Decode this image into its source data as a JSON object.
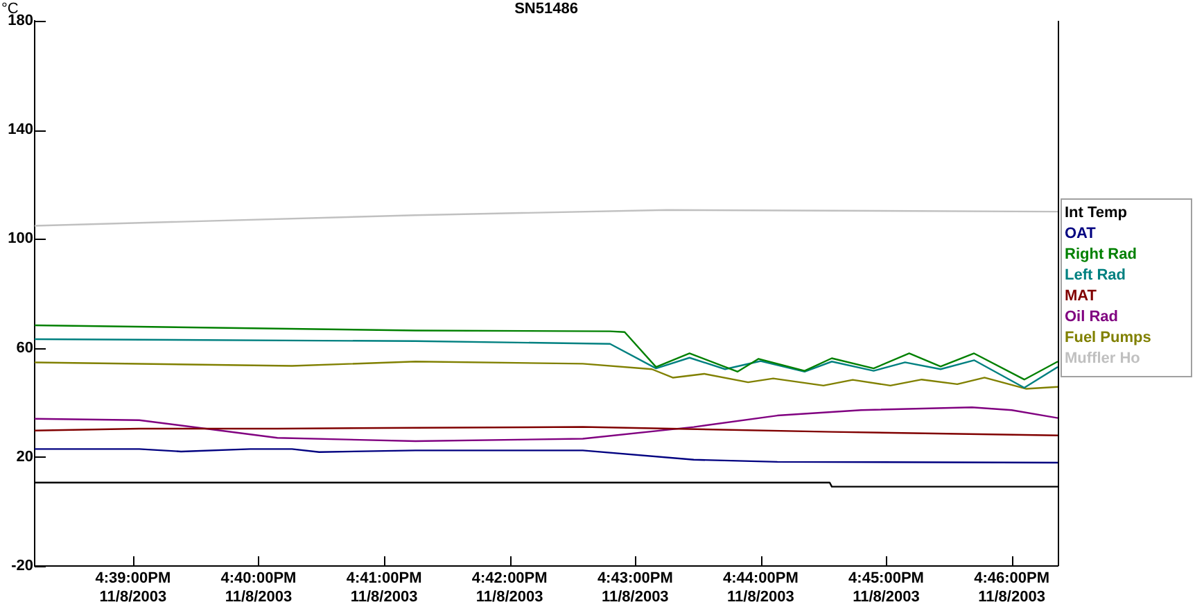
{
  "chart_data": {
    "type": "line",
    "title": "SN51486",
    "ylabel": "°C",
    "legend": "right",
    "grid": false,
    "marker": "none",
    "line_style": "solid",
    "xlim": [
      "2003-11-08T16:38:13",
      "2003-11-08T16:46:22"
    ],
    "ylim": [
      -20,
      180
    ],
    "yticks": [
      -20,
      20,
      60,
      100,
      140,
      180
    ],
    "xticks": [
      {
        "value": "2003-11-08T16:39",
        "label": "4:39:00PM\n11/8/2003"
      },
      {
        "value": "2003-11-08T16:40",
        "label": "4:40:00PM\n11/8/2003"
      },
      {
        "value": "2003-11-08T16:41",
        "label": "4:41:00PM\n11/8/2003"
      },
      {
        "value": "2003-11-08T16:42",
        "label": "4:42:00PM\n11/8/2003"
      },
      {
        "value": "2003-11-08T16:43",
        "label": "4:43:00PM\n11/8/2003"
      },
      {
        "value": "2003-11-08T16:44",
        "label": "4:44:00PM\n11/8/2003"
      },
      {
        "value": "2003-11-08T16:45",
        "label": "4:45:00PM\n11/8/2003"
      },
      {
        "value": "2003-11-08T16:46",
        "label": "4:46:00PM\n11/8/2003"
      }
    ],
    "series": [
      {
        "name": "Int Temp",
        "color": "#000000",
        "x": [
          "2003-11-08T16:38:13",
          "2003-11-08T16:44:33",
          "2003-11-08T16:44:34",
          "2003-11-08T16:46:22"
        ],
        "values": [
          10.6,
          10.6,
          9.1,
          9.1
        ]
      },
      {
        "name": "OAT",
        "color": "#000080",
        "x": [
          "2003-11-08T16:38:13",
          "2003-11-08T16:39:03",
          "2003-11-08T16:39:23",
          "2003-11-08T16:39:56",
          "2003-11-08T16:40:16",
          "2003-11-08T16:40:29",
          "2003-11-08T16:41:15",
          "2003-11-08T16:42:35",
          "2003-11-08T16:43:28",
          "2003-11-08T16:44:08",
          "2003-11-08T16:46:22"
        ],
        "values": [
          22.9,
          22.9,
          22,
          22.9,
          22.9,
          21.8,
          22.4,
          22.4,
          19,
          18.2,
          17.9
        ]
      },
      {
        "name": "Right Rad",
        "color": "#008000",
        "x": [
          "2003-11-08T16:38:13",
          "2003-11-08T16:41:15",
          "2003-11-08T16:42:48",
          "2003-11-08T16:42:55",
          "2003-11-08T16:43:10",
          "2003-11-08T16:43:26",
          "2003-11-08T16:43:49",
          "2003-11-08T16:43:59",
          "2003-11-08T16:44:21",
          "2003-11-08T16:44:34",
          "2003-11-08T16:44:54",
          "2003-11-08T16:45:11",
          "2003-11-08T16:45:26",
          "2003-11-08T16:45:42",
          "2003-11-08T16:46:06",
          "2003-11-08T16:46:22"
        ],
        "values": [
          68.3,
          66.4,
          66.1,
          65.8,
          53,
          58,
          51.3,
          56,
          51.6,
          56.2,
          52.5,
          58,
          53.2,
          58,
          48.4,
          55
        ]
      },
      {
        "name": "Left Rad",
        "color": "#008080",
        "x": [
          "2003-11-08T16:38:13",
          "2003-11-08T16:41:15",
          "2003-11-08T16:42:48",
          "2003-11-08T16:43:10",
          "2003-11-08T16:43:26",
          "2003-11-08T16:43:43",
          "2003-11-08T16:44:00",
          "2003-11-08T16:44:21",
          "2003-11-08T16:44:34",
          "2003-11-08T16:44:54",
          "2003-11-08T16:45:09",
          "2003-11-08T16:45:26",
          "2003-11-08T16:45:42",
          "2003-11-08T16:46:06",
          "2003-11-08T16:46:22"
        ],
        "values": [
          63.2,
          62.5,
          61.5,
          52.5,
          56.4,
          52.2,
          55.2,
          51.3,
          55,
          51.6,
          54.7,
          52.2,
          55.5,
          45.4,
          53
        ]
      },
      {
        "name": "MAT",
        "color": "#800000",
        "x": [
          "2003-11-08T16:38:13",
          "2003-11-08T16:39:03",
          "2003-11-08T16:40:09",
          "2003-11-08T16:41:15",
          "2003-11-08T16:42:35",
          "2003-11-08T16:44:34",
          "2003-11-08T16:46:22"
        ],
        "values": [
          29.7,
          30.4,
          30.4,
          30.7,
          31,
          29.2,
          27.9
        ]
      },
      {
        "name": "Oil Rad",
        "color": "#800080",
        "x": [
          "2003-11-08T16:38:13",
          "2003-11-08T16:39:03",
          "2003-11-08T16:40:09",
          "2003-11-08T16:41:15",
          "2003-11-08T16:42:35",
          "2003-11-08T16:43:28",
          "2003-11-08T16:44:08",
          "2003-11-08T16:44:48",
          "2003-11-08T16:45:41",
          "2003-11-08T16:46:00",
          "2003-11-08T16:46:22"
        ],
        "values": [
          34,
          33.5,
          27,
          25.8,
          26.7,
          31,
          35.2,
          37.2,
          38.2,
          37.2,
          34.3
        ]
      },
      {
        "name": "Fuel Pumps",
        "color": "#808000",
        "x": [
          "2003-11-08T16:38:13",
          "2003-11-08T16:40:16",
          "2003-11-08T16:41:15",
          "2003-11-08T16:42:35",
          "2003-11-08T16:43:08",
          "2003-11-08T16:43:18",
          "2003-11-08T16:43:33",
          "2003-11-08T16:43:54",
          "2003-11-08T16:44:06",
          "2003-11-08T16:44:30",
          "2003-11-08T16:44:44",
          "2003-11-08T16:45:02",
          "2003-11-08T16:45:17",
          "2003-11-08T16:45:34",
          "2003-11-08T16:45:47",
          "2003-11-08T16:46:07",
          "2003-11-08T16:46:22"
        ],
        "values": [
          54.7,
          53.4,
          55,
          54.2,
          52.2,
          49.1,
          50.5,
          47.4,
          48.8,
          46.2,
          48.3,
          46.2,
          48.4,
          46.7,
          49.1,
          45,
          45.7
        ]
      },
      {
        "name": "Muffler Ho",
        "color": "#c0c0c0",
        "x": [
          "2003-11-08T16:38:13",
          "2003-11-08T16:41:15",
          "2003-11-08T16:43:15",
          "2003-11-08T16:46:22"
        ],
        "values": [
          104.8,
          108.7,
          110.6,
          110
        ]
      }
    ]
  }
}
